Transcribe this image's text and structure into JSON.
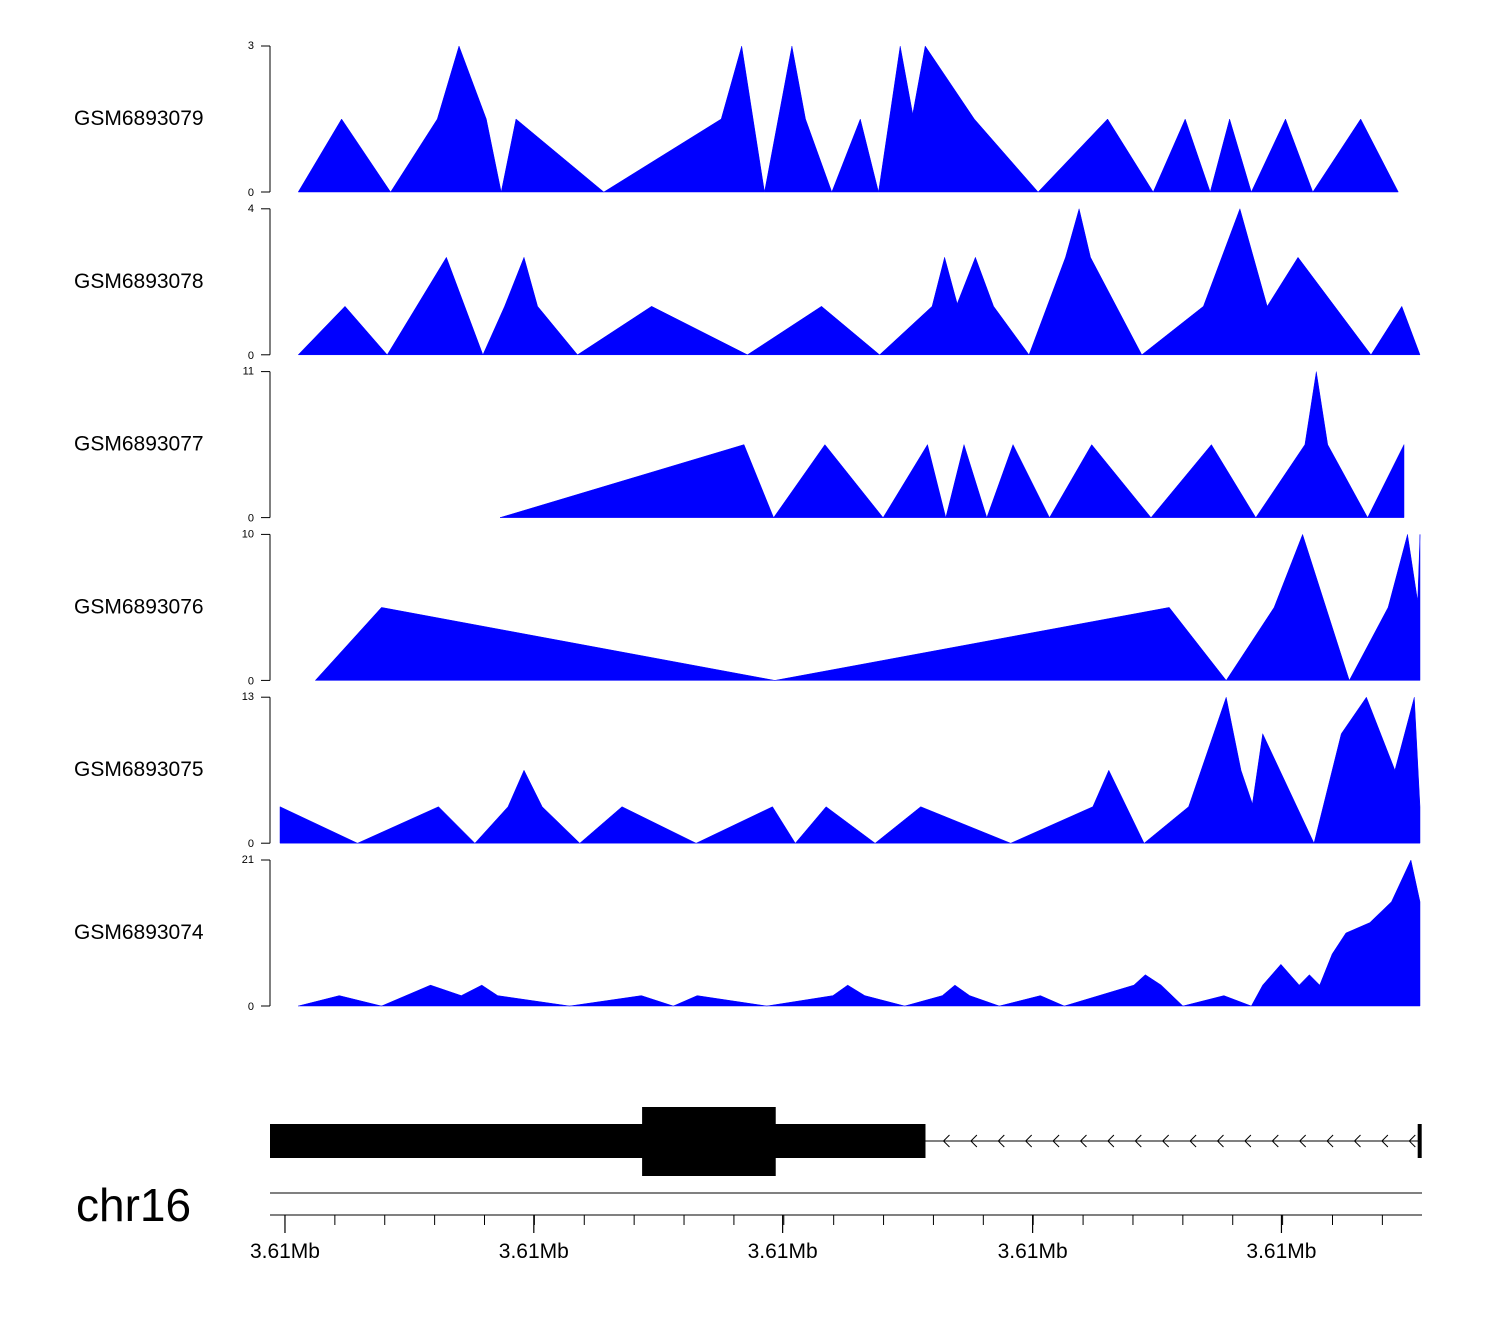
{
  "colors": {
    "track_fill": "#0000ff",
    "gene": "#000000",
    "axis": "#000000"
  },
  "chart_data": {
    "type": "area",
    "x_unit": "relative position along region (0-1)",
    "tracks": [
      {
        "name": "GSM6893079",
        "ymax": 3,
        "ymin_label": "0",
        "ymax_label": "3",
        "points": [
          [
            0.016,
            0
          ],
          [
            0.054,
            1.5
          ],
          [
            0.097,
            0
          ],
          [
            0.138,
            1.5
          ],
          [
            0.157,
            3
          ],
          [
            0.181,
            1.5
          ],
          [
            0.194,
            0
          ],
          [
            0.207,
            1.5
          ],
          [
            0.284,
            0
          ],
          [
            0.387,
            1.5
          ],
          [
            0.405,
            3
          ],
          [
            0.425,
            0
          ],
          [
            0.449,
            3
          ],
          [
            0.461,
            1.5
          ],
          [
            0.484,
            0
          ],
          [
            0.509,
            1.5
          ],
          [
            0.525,
            0
          ],
          [
            0.544,
            3
          ],
          [
            0.555,
            1.6
          ],
          [
            0.566,
            3
          ],
          [
            0.609,
            1.5
          ],
          [
            0.665,
            0
          ],
          [
            0.726,
            1.5
          ],
          [
            0.766,
            0
          ],
          [
            0.794,
            1.5
          ],
          [
            0.816,
            0
          ],
          [
            0.833,
            1.5
          ],
          [
            0.852,
            0
          ],
          [
            0.882,
            1.5
          ],
          [
            0.906,
            0
          ],
          [
            0.948,
            1.5
          ],
          [
            0.981,
            0
          ]
        ]
      },
      {
        "name": "GSM6893078",
        "ymax": 4,
        "ymin_label": "0",
        "ymax_label": "4",
        "points": [
          [
            0.016,
            0
          ],
          [
            0.057,
            1.33
          ],
          [
            0.094,
            0
          ],
          [
            0.146,
            2.67
          ],
          [
            0.178,
            0
          ],
          [
            0.197,
            1.33
          ],
          [
            0.214,
            2.67
          ],
          [
            0.226,
            1.33
          ],
          [
            0.261,
            0
          ],
          [
            0.326,
            1.33
          ],
          [
            0.41,
            0
          ],
          [
            0.475,
            1.33
          ],
          [
            0.526,
            0
          ],
          [
            0.572,
            1.33
          ],
          [
            0.583,
            2.67
          ],
          [
            0.594,
            1.4
          ],
          [
            0.61,
            2.67
          ],
          [
            0.626,
            1.33
          ],
          [
            0.657,
            0
          ],
          [
            0.689,
            2.67
          ],
          [
            0.701,
            4
          ],
          [
            0.711,
            2.67
          ],
          [
            0.756,
            0
          ],
          [
            0.81,
            1.33
          ],
          [
            0.842,
            4
          ],
          [
            0.866,
            1.33
          ],
          [
            0.893,
            2.67
          ],
          [
            0.957,
            0
          ],
          [
            0.984,
            1.33
          ],
          [
            1.0,
            0
          ]
        ]
      },
      {
        "name": "GSM6893077",
        "ymax": 11,
        "ymin_label": "0",
        "ymax_label": "11",
        "points": [
          [
            0.193,
            0
          ],
          [
            0.407,
            5.5
          ],
          [
            0.433,
            0
          ],
          [
            0.478,
            5.5
          ],
          [
            0.529,
            0
          ],
          [
            0.568,
            5.5
          ],
          [
            0.584,
            0
          ],
          [
            0.6,
            5.5
          ],
          [
            0.62,
            0
          ],
          [
            0.643,
            5.5
          ],
          [
            0.675,
            0
          ],
          [
            0.712,
            5.5
          ],
          [
            0.764,
            0
          ],
          [
            0.817,
            5.5
          ],
          [
            0.856,
            0
          ],
          [
            0.899,
            5.5
          ],
          [
            0.909,
            11
          ],
          [
            0.919,
            5.5
          ],
          [
            0.954,
            0
          ],
          [
            0.986,
            5.5
          ],
          [
            0.986,
            0
          ]
        ]
      },
      {
        "name": "GSM6893076",
        "ymax": 10,
        "ymin_label": "0",
        "ymax_label": "10",
        "points": [
          [
            0.031,
            0
          ],
          [
            0.089,
            5
          ],
          [
            0.434,
            0
          ],
          [
            0.78,
            5
          ],
          [
            0.83,
            0
          ],
          [
            0.872,
            5
          ],
          [
            0.897,
            10
          ],
          [
            0.938,
            0
          ],
          [
            0.972,
            5
          ],
          [
            0.989,
            10
          ],
          [
            0.998,
            5.4
          ],
          [
            1.0,
            10
          ],
          [
            1.0,
            0
          ]
        ]
      },
      {
        "name": "GSM6893075",
        "ymax": 13,
        "ymin_label": "0",
        "ymax_label": "13",
        "points": [
          [
            0.0,
            3.25
          ],
          [
            0.068,
            0
          ],
          [
            0.139,
            3.25
          ],
          [
            0.171,
            0
          ],
          [
            0.2,
            3.25
          ],
          [
            0.214,
            6.5
          ],
          [
            0.23,
            3.25
          ],
          [
            0.263,
            0
          ],
          [
            0.3,
            3.25
          ],
          [
            0.365,
            0
          ],
          [
            0.432,
            3.25
          ],
          [
            0.452,
            0
          ],
          [
            0.479,
            3.25
          ],
          [
            0.522,
            0
          ],
          [
            0.562,
            3.25
          ],
          [
            0.641,
            0
          ],
          [
            0.713,
            3.25
          ],
          [
            0.727,
            6.5
          ],
          [
            0.758,
            0
          ],
          [
            0.797,
            3.25
          ],
          [
            0.83,
            13
          ],
          [
            0.843,
            6.5
          ],
          [
            0.853,
            3.5
          ],
          [
            0.862,
            9.75
          ],
          [
            0.877,
            6.5
          ],
          [
            0.907,
            0
          ],
          [
            0.931,
            9.75
          ],
          [
            0.953,
            13
          ],
          [
            0.978,
            6.5
          ],
          [
            0.995,
            13
          ],
          [
            1.0,
            3.25
          ],
          [
            1.0,
            0
          ]
        ]
      },
      {
        "name": "GSM6893074",
        "ymax": 21,
        "ymin_label": "0",
        "ymax_label": "21",
        "points": [
          [
            0.016,
            0
          ],
          [
            0.052,
            1.5
          ],
          [
            0.089,
            0
          ],
          [
            0.132,
            3
          ],
          [
            0.159,
            1.5
          ],
          [
            0.177,
            3
          ],
          [
            0.191,
            1.5
          ],
          [
            0.254,
            0
          ],
          [
            0.317,
            1.5
          ],
          [
            0.345,
            0
          ],
          [
            0.366,
            1.5
          ],
          [
            0.427,
            0
          ],
          [
            0.485,
            1.5
          ],
          [
            0.498,
            3
          ],
          [
            0.513,
            1.5
          ],
          [
            0.548,
            0
          ],
          [
            0.581,
            1.5
          ],
          [
            0.592,
            3
          ],
          [
            0.605,
            1.5
          ],
          [
            0.631,
            0
          ],
          [
            0.667,
            1.5
          ],
          [
            0.688,
            0
          ],
          [
            0.749,
            3
          ],
          [
            0.759,
            4.5
          ],
          [
            0.773,
            3
          ],
          [
            0.792,
            0
          ],
          [
            0.828,
            1.5
          ],
          [
            0.852,
            0
          ],
          [
            0.862,
            3
          ],
          [
            0.878,
            6
          ],
          [
            0.894,
            3
          ],
          [
            0.903,
            4.5
          ],
          [
            0.912,
            3
          ],
          [
            0.923,
            7.5
          ],
          [
            0.935,
            10.5
          ],
          [
            0.956,
            12
          ],
          [
            0.975,
            15
          ],
          [
            0.992,
            21
          ],
          [
            1.0,
            15
          ],
          [
            1.0,
            0
          ]
        ]
      }
    ],
    "gene_model": {
      "chromosome": "chr16",
      "strand": "-",
      "utr_segments": [
        [
          0.0,
          0.569
        ]
      ],
      "cds_segments": [
        [
          0.323,
          0.439
        ]
      ],
      "intron_segments": [
        [
          0.569,
          0.997
        ]
      ],
      "tss": 0.998
    },
    "x_axis": {
      "tick_labels": [
        "3.61Mb",
        "3.61Mb",
        "3.61Mb",
        "3.61Mb",
        "3.61Mb"
      ],
      "major_tick_positions": [
        0.013,
        0.229,
        0.445,
        0.662,
        0.878
      ],
      "minor_tick_step": 0.0433
    }
  }
}
